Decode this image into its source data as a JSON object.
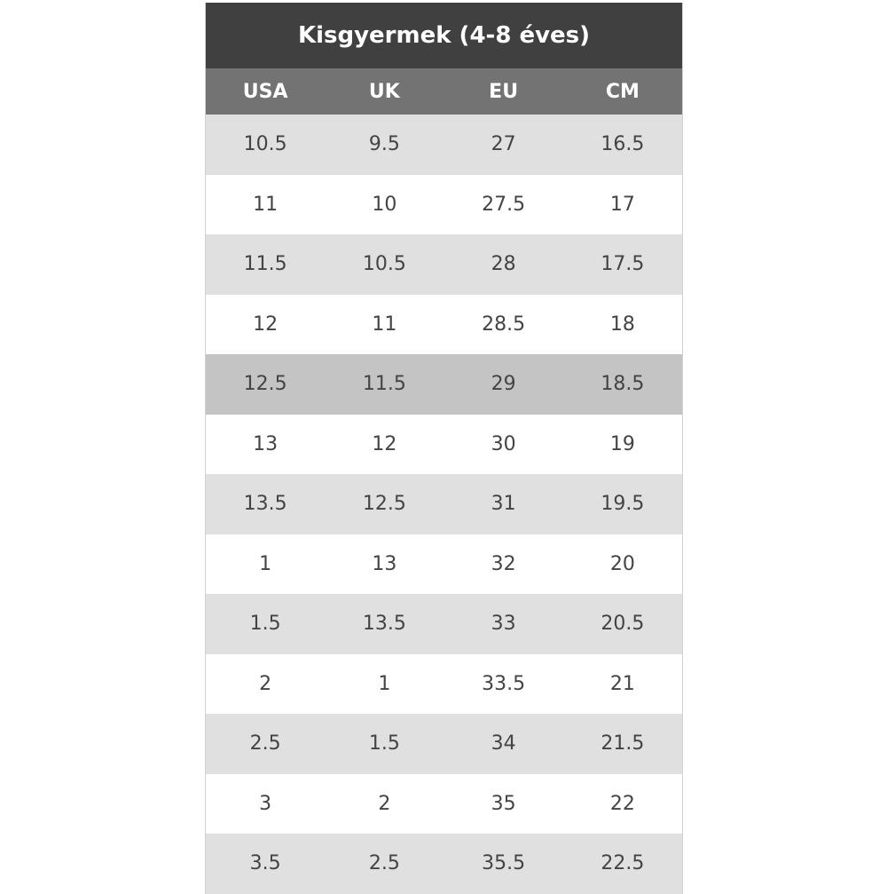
{
  "title": "Kisgyermek (4-8 éves)",
  "headers": [
    "USA",
    "UK",
    "EU",
    "CM"
  ],
  "highlighted_row": 4,
  "colors": {
    "title_bg": "#404040",
    "header_bg": "#737373",
    "stripe": "#e0e0e0",
    "highlight": "#c4c4c4"
  },
  "rows": [
    [
      "10.5",
      "9.5",
      "27",
      "16.5"
    ],
    [
      "11",
      "10",
      "27.5",
      "17"
    ],
    [
      "11.5",
      "10.5",
      "28",
      "17.5"
    ],
    [
      "12",
      "11",
      "28.5",
      "18"
    ],
    [
      "12.5",
      "11.5",
      "29",
      "18.5"
    ],
    [
      "13",
      "12",
      "30",
      "19"
    ],
    [
      "13.5",
      "12.5",
      "31",
      "19.5"
    ],
    [
      "1",
      "13",
      "32",
      "20"
    ],
    [
      "1.5",
      "13.5",
      "33",
      "20.5"
    ],
    [
      "2",
      "1",
      "33.5",
      "21"
    ],
    [
      "2.5",
      "1.5",
      "34",
      "21.5"
    ],
    [
      "3",
      "2",
      "35",
      "22"
    ],
    [
      "3.5",
      "2.5",
      "35.5",
      "22.5"
    ]
  ]
}
